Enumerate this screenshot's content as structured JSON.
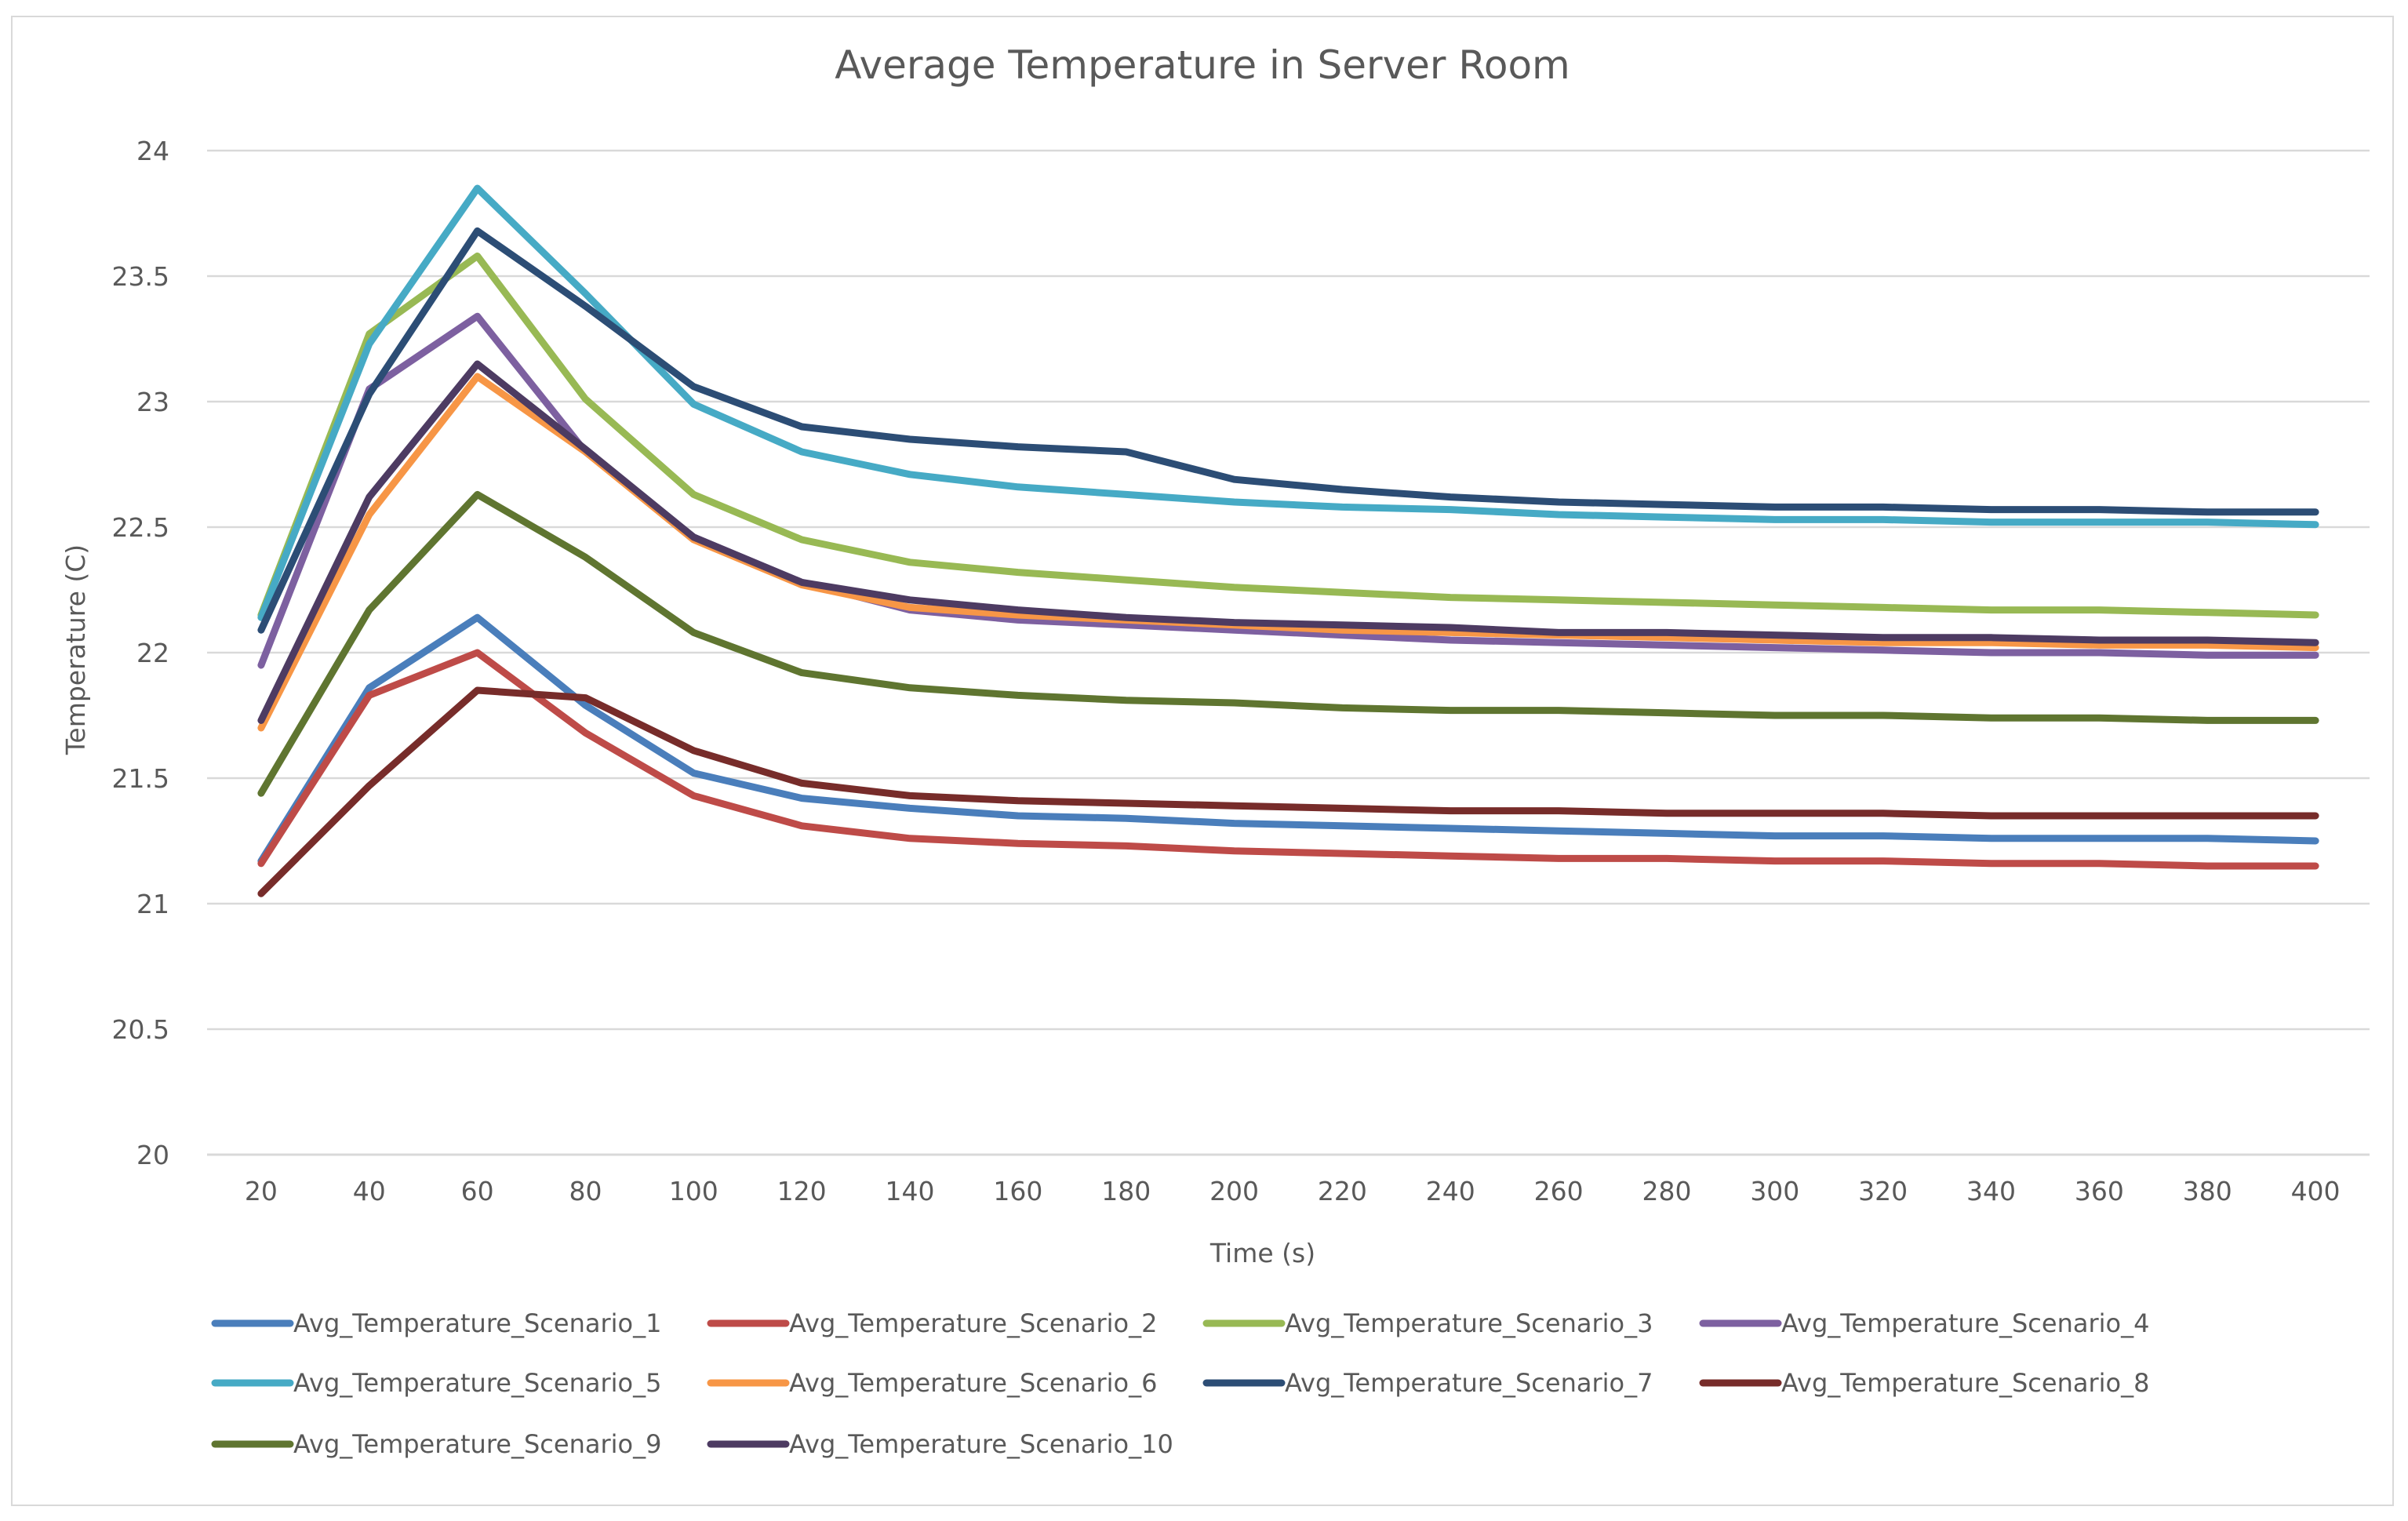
{
  "chart_data": {
    "type": "line",
    "title": "Average Temperature in Server Room",
    "xlabel": "Time (s)",
    "ylabel": "Temperature (C)",
    "ylim": [
      20,
      24
    ],
    "yticks": [
      "20",
      "20.5",
      "21",
      "21.5",
      "22",
      "22.5",
      "23",
      "23.5",
      "24"
    ],
    "ytick_values": [
      20,
      20.5,
      21,
      21.5,
      22,
      22.5,
      23,
      23.5,
      24
    ],
    "categories": [
      "20",
      "40",
      "60",
      "80",
      "100",
      "120",
      "140",
      "160",
      "180",
      "200",
      "220",
      "240",
      "260",
      "280",
      "300",
      "320",
      "340",
      "360",
      "380",
      "400"
    ],
    "grid": true,
    "legend_position": "bottom",
    "series": [
      {
        "name": "Avg_Temperature_Scenario_1",
        "color": "#4A7EBB",
        "values": [
          21.17,
          21.86,
          22.14,
          21.79,
          21.52,
          21.42,
          21.38,
          21.35,
          21.34,
          21.32,
          21.31,
          21.3,
          21.29,
          21.28,
          21.27,
          21.27,
          21.26,
          21.26,
          21.26,
          21.25
        ]
      },
      {
        "name": "Avg_Temperature_Scenario_2",
        "color": "#BE4B48",
        "values": [
          21.16,
          21.83,
          22.0,
          21.68,
          21.43,
          21.31,
          21.26,
          21.24,
          21.23,
          21.21,
          21.2,
          21.19,
          21.18,
          21.18,
          21.17,
          21.17,
          21.16,
          21.16,
          21.15,
          21.15
        ]
      },
      {
        "name": "Avg_Temperature_Scenario_3",
        "color": "#98B954",
        "values": [
          22.15,
          23.27,
          23.58,
          23.01,
          22.63,
          22.45,
          22.36,
          22.32,
          22.29,
          22.26,
          22.24,
          22.22,
          22.21,
          22.2,
          22.19,
          22.18,
          22.17,
          22.17,
          22.16,
          22.15
        ]
      },
      {
        "name": "Avg_Temperature_Scenario_4",
        "color": "#7D60A0",
        "values": [
          21.95,
          23.05,
          23.34,
          22.8,
          22.46,
          22.28,
          22.17,
          22.13,
          22.11,
          22.09,
          22.07,
          22.05,
          22.04,
          22.03,
          22.02,
          22.01,
          22.0,
          22.0,
          21.99,
          21.99
        ]
      },
      {
        "name": "Avg_Temperature_Scenario_5",
        "color": "#46AAC5",
        "values": [
          22.14,
          23.23,
          23.85,
          23.43,
          22.99,
          22.8,
          22.71,
          22.66,
          22.63,
          22.6,
          22.58,
          22.57,
          22.55,
          22.54,
          22.53,
          22.53,
          22.52,
          22.52,
          22.52,
          22.51
        ]
      },
      {
        "name": "Avg_Temperature_Scenario_6",
        "color": "#F79646",
        "values": [
          21.7,
          22.55,
          23.1,
          22.8,
          22.45,
          22.27,
          22.18,
          22.15,
          22.13,
          22.11,
          22.09,
          22.08,
          22.07,
          22.06,
          22.05,
          22.04,
          22.04,
          22.03,
          22.03,
          22.02
        ]
      },
      {
        "name": "Avg_Temperature_Scenario_7",
        "color": "#2C4D75",
        "values": [
          22.09,
          23.03,
          23.68,
          23.38,
          23.06,
          22.9,
          22.85,
          22.82,
          22.8,
          22.69,
          22.65,
          22.62,
          22.6,
          22.59,
          22.58,
          22.58,
          22.57,
          22.57,
          22.56,
          22.56
        ]
      },
      {
        "name": "Avg_Temperature_Scenario_8",
        "color": "#772C2A",
        "values": [
          21.04,
          21.47,
          21.85,
          21.82,
          21.61,
          21.48,
          21.43,
          21.41,
          21.4,
          21.39,
          21.38,
          21.37,
          21.37,
          21.36,
          21.36,
          21.36,
          21.35,
          21.35,
          21.35,
          21.35
        ]
      },
      {
        "name": "Avg_Temperature_Scenario_9",
        "color": "#5F7530",
        "values": [
          21.44,
          22.17,
          22.63,
          22.38,
          22.08,
          21.92,
          21.86,
          21.83,
          21.81,
          21.8,
          21.78,
          21.77,
          21.77,
          21.76,
          21.75,
          21.75,
          21.74,
          21.74,
          21.73,
          21.73
        ]
      },
      {
        "name": "Avg_Temperature_Scenario_10",
        "color": "#4D3B62",
        "values": [
          21.73,
          22.62,
          23.15,
          22.81,
          22.46,
          22.28,
          22.21,
          22.17,
          22.14,
          22.12,
          22.11,
          22.1,
          22.08,
          22.08,
          22.07,
          22.06,
          22.06,
          22.05,
          22.05,
          22.04
        ]
      }
    ]
  }
}
